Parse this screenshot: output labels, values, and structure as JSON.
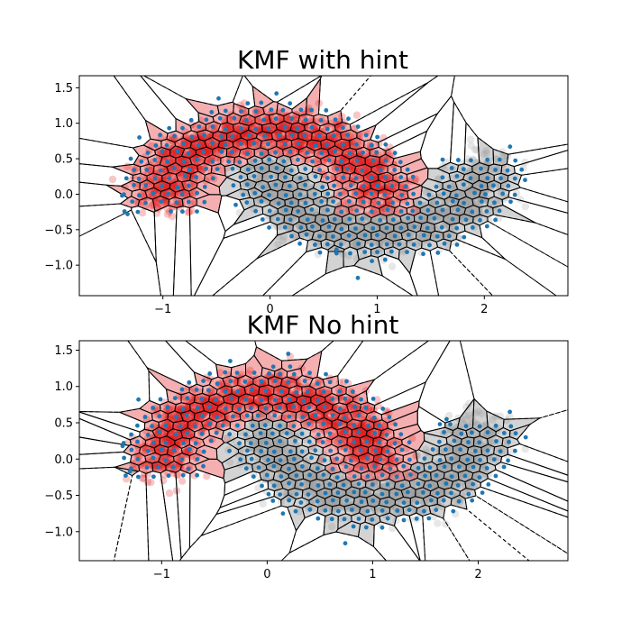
{
  "chart_data": [
    {
      "type": "scatter",
      "title": "KMF with hint",
      "xlabel": "",
      "ylabel": "",
      "xlim": [
        -1.78,
        2.78
      ],
      "ylim": [
        -1.43,
        1.67
      ],
      "xticks": [
        {
          "value": -1,
          "label": "−1"
        },
        {
          "value": 0,
          "label": "0"
        },
        {
          "value": 1,
          "label": "1"
        },
        {
          "value": 2,
          "label": "2"
        }
      ],
      "yticks": [
        {
          "value": 1.5,
          "label": "1.5"
        },
        {
          "value": 1.0,
          "label": "1.0"
        },
        {
          "value": 0.5,
          "label": "0.5"
        },
        {
          "value": 0.0,
          "label": "0.0"
        },
        {
          "value": -0.5,
          "label": "−0.5"
        },
        {
          "value": -1.0,
          "label": "−1.0"
        }
      ],
      "grid": false,
      "series": [
        {
          "kind": "points",
          "color": "#e31a1c",
          "alpha": 0.25,
          "description_ref": "upper moon"
        },
        {
          "kind": "points",
          "color": "#b0b0b0",
          "alpha": 0.3,
          "description_ref": "lower moon"
        },
        {
          "kind": "centroids",
          "color": "#1f77b4"
        },
        {
          "kind": "voronoi-edges",
          "color": "#000000"
        }
      ],
      "highlighted_cells": {
        "upper_moon_color": "#e31a1c",
        "lower_moon_color": "#808080"
      },
      "seed": 7
    },
    {
      "type": "scatter",
      "title": "KMF No hint",
      "xlabel": "",
      "ylabel": "",
      "xlim": [
        -1.78,
        2.85
      ],
      "ylim": [
        -1.4,
        1.63
      ],
      "xticks": [
        {
          "value": -1,
          "label": "−1"
        },
        {
          "value": 0,
          "label": "0"
        },
        {
          "value": 1,
          "label": "1"
        },
        {
          "value": 2,
          "label": "2"
        }
      ],
      "yticks": [
        {
          "value": 1.5,
          "label": "1.5"
        },
        {
          "value": 1.0,
          "label": "1.0"
        },
        {
          "value": 0.5,
          "label": "0.5"
        },
        {
          "value": 0.0,
          "label": "0.0"
        },
        {
          "value": -0.5,
          "label": "−0.5"
        },
        {
          "value": -1.0,
          "label": "−1.0"
        }
      ],
      "grid": false,
      "series": [
        {
          "kind": "points",
          "color": "#e31a1c",
          "alpha": 0.25,
          "description_ref": "upper moon"
        },
        {
          "kind": "points",
          "color": "#b0b0b0",
          "alpha": 0.3,
          "description_ref": "lower moon"
        },
        {
          "kind": "centroids",
          "color": "#1f77b4"
        },
        {
          "kind": "voronoi-edges",
          "color": "#000000"
        }
      ],
      "highlighted_cells": {
        "upper_moon_color": "#e31a1c",
        "lower_moon_color": "#808080"
      },
      "seed": 11
    }
  ]
}
